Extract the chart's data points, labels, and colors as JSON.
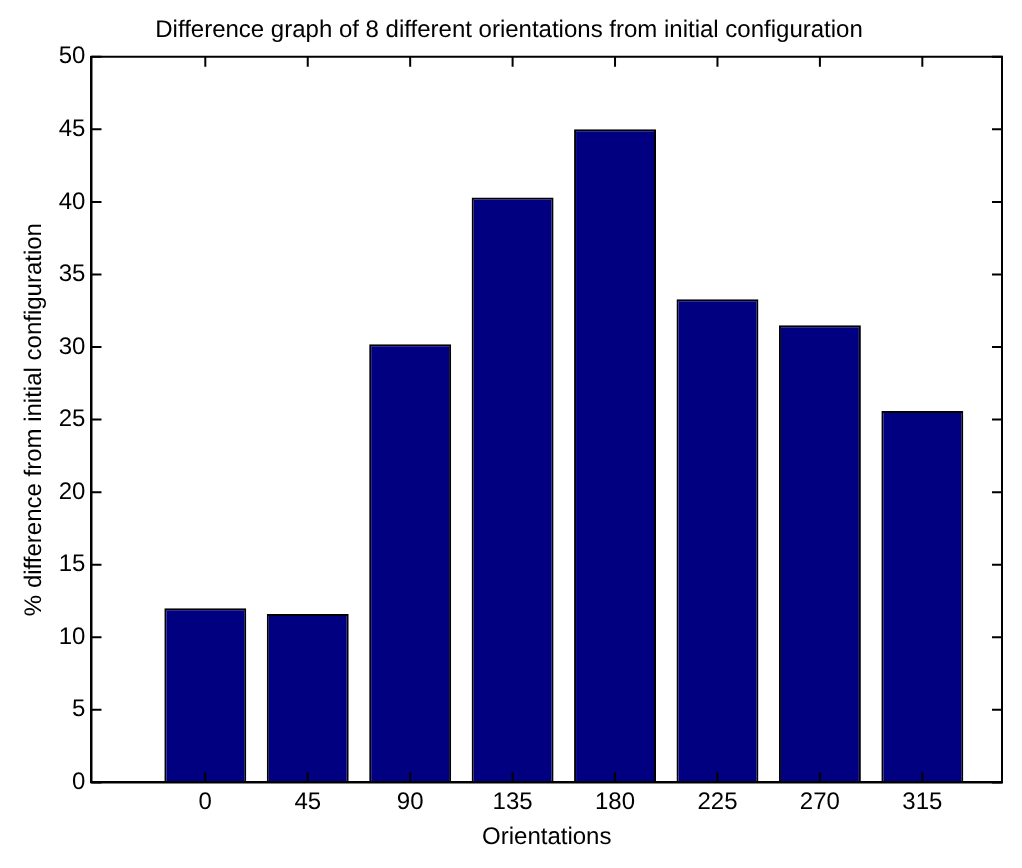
{
  "chart_data": {
    "type": "bar",
    "title": "Difference graph of 8 different orientations from initial configuration",
    "xlabel": "Orientations",
    "ylabel": "% difference from initial configuration",
    "x": [
      0,
      45,
      90,
      135,
      180,
      225,
      270,
      315
    ],
    "values": [
      12.0,
      11.6,
      30.2,
      40.3,
      45.0,
      33.3,
      31.5,
      25.6
    ],
    "color": "#000080",
    "xlim": [
      -50,
      350
    ],
    "xticks": [
      0,
      45,
      90,
      135,
      180,
      225,
      270,
      315
    ],
    "ylim": [
      0,
      50
    ],
    "yticks": [
      0,
      5,
      10,
      15,
      20,
      25,
      30,
      35,
      40,
      45,
      50
    ],
    "grid": false,
    "legend": false
  }
}
